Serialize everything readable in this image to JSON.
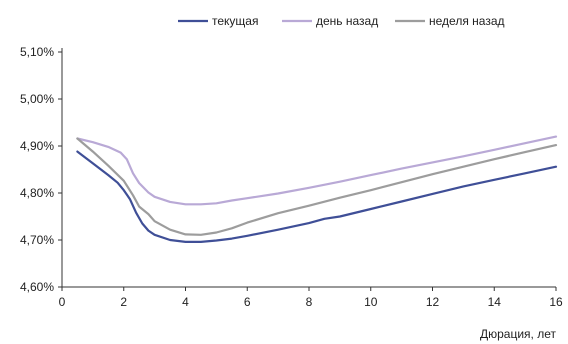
{
  "chart_data": {
    "type": "line",
    "xlabel": "Дюрация, лет",
    "ylabel": "",
    "xlim": [
      0,
      16
    ],
    "ylim": [
      4.6,
      5.1
    ],
    "xticks": [
      0,
      2,
      4,
      6,
      8,
      10,
      12,
      14,
      16
    ],
    "yticks": [
      4.6,
      4.7,
      4.8,
      4.9,
      5.0,
      5.1
    ],
    "ytick_labels": [
      "4,60%",
      "4,70%",
      "4,80%",
      "4,90%",
      "5,00%",
      "5,10%"
    ],
    "xtick_labels": [
      "0",
      "2",
      "4",
      "6",
      "8",
      "10",
      "12",
      "14",
      "16"
    ],
    "legend_position": "top-center",
    "grid": false,
    "series": [
      {
        "name": "текущая",
        "color": "#3f4f97",
        "x": [
          0.5,
          1.0,
          1.5,
          1.8,
          2.0,
          2.2,
          2.4,
          2.6,
          2.8,
          3.0,
          3.5,
          4.0,
          4.5,
          5.0,
          5.5,
          6.0,
          7.0,
          8.0,
          8.5,
          9.0,
          10.0,
          11.0,
          12.0,
          13.0,
          14.0,
          15.0,
          16.0
        ],
        "y": [
          4.888,
          4.863,
          4.838,
          4.822,
          4.806,
          4.787,
          4.758,
          4.735,
          4.72,
          4.711,
          4.7,
          4.696,
          4.696,
          4.699,
          4.703,
          4.709,
          4.722,
          4.736,
          4.745,
          4.75,
          4.766,
          4.782,
          4.798,
          4.814,
          4.828,
          4.842,
          4.856
        ]
      },
      {
        "name": "день назад",
        "color": "#b9a9d6",
        "x": [
          0.5,
          1.0,
          1.5,
          1.9,
          2.1,
          2.3,
          2.5,
          2.8,
          3.0,
          3.5,
          4.0,
          4.5,
          5.0,
          5.5,
          6.0,
          7.0,
          8.0,
          9.0,
          10.0,
          11.0,
          12.0,
          13.0,
          14.0,
          15.0,
          16.0
        ],
        "y": [
          4.916,
          4.908,
          4.898,
          4.886,
          4.872,
          4.842,
          4.821,
          4.801,
          4.792,
          4.781,
          4.776,
          4.776,
          4.778,
          4.784,
          4.789,
          4.799,
          4.811,
          4.824,
          4.838,
          4.852,
          4.865,
          4.878,
          4.892,
          4.906,
          4.92
        ]
      },
      {
        "name": "неделя назад",
        "color": "#9d9d9d",
        "x": [
          0.5,
          1.0,
          1.5,
          2.0,
          2.3,
          2.5,
          2.8,
          3.0,
          3.5,
          4.0,
          4.5,
          5.0,
          5.5,
          6.0,
          7.0,
          8.0,
          9.0,
          10.0,
          11.0,
          12.0,
          13.0,
          14.0,
          15.0,
          16.0
        ],
        "y": [
          4.916,
          4.888,
          4.858,
          4.826,
          4.795,
          4.771,
          4.755,
          4.74,
          4.722,
          4.712,
          4.711,
          4.716,
          4.725,
          4.737,
          4.757,
          4.773,
          4.79,
          4.806,
          4.823,
          4.84,
          4.856,
          4.872,
          4.887,
          4.902
        ]
      }
    ]
  }
}
